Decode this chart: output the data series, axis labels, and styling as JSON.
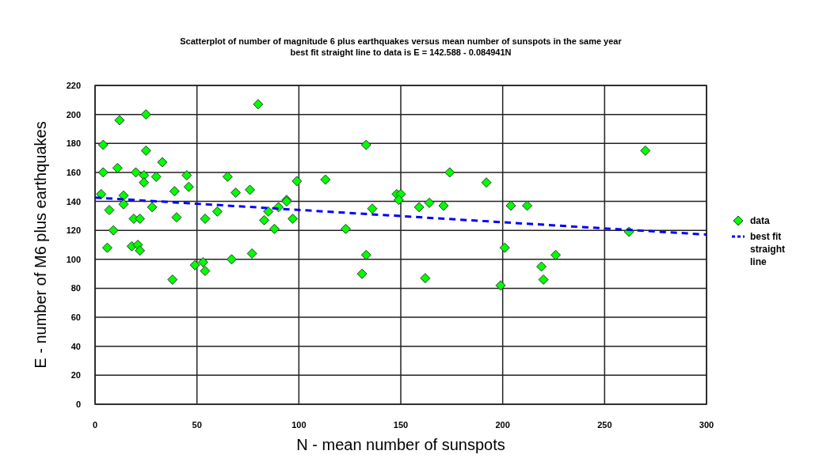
{
  "chart_data": {
    "type": "scatter",
    "title": "Scatterplot of number of magnitude 6 plus earthquakes versus mean number of sunspots in the same year",
    "subtitle": "best fit straight line to data is E = 142.588 - 0.084941N",
    "xlabel": "N - mean number of sunspots",
    "ylabel": "E - number of M6 plus earthquakes",
    "xlim": [
      0,
      300
    ],
    "xticks": [
      0,
      50,
      100,
      150,
      200,
      250,
      300
    ],
    "ylim": [
      0,
      220
    ],
    "yticks": [
      0,
      20,
      40,
      60,
      80,
      100,
      120,
      140,
      160,
      180,
      200,
      220
    ],
    "grid": true,
    "legend": "right",
    "series": [
      {
        "name": "data",
        "color": "#00ff00",
        "marker": "diamond",
        "x": [
          3,
          4,
          4,
          6,
          7,
          9,
          11,
          12,
          14,
          14,
          18,
          19,
          20,
          21,
          22,
          22,
          24,
          25,
          25,
          24,
          28,
          30,
          33,
          38,
          39,
          40,
          45,
          46,
          49,
          53,
          54,
          54,
          60,
          65,
          67,
          69,
          76,
          77,
          80,
          83,
          85,
          88,
          90,
          94,
          94,
          97,
          99,
          113,
          123,
          131,
          133,
          133,
          136,
          148,
          150,
          149,
          159,
          162,
          164,
          171,
          174,
          192,
          199,
          201,
          204,
          212,
          219,
          220,
          226,
          262,
          270
        ],
        "values": [
          145,
          179,
          160,
          108,
          134,
          120,
          163,
          196,
          144,
          138,
          109,
          128,
          160,
          110,
          106,
          128,
          158,
          175,
          200,
          153,
          136,
          157,
          167,
          86,
          147,
          129,
          158,
          150,
          96,
          98,
          92,
          128,
          133,
          157,
          100,
          146,
          148,
          104,
          207,
          127,
          133,
          121,
          136,
          141,
          140,
          128,
          154,
          155,
          121,
          90,
          103,
          179,
          135,
          145,
          145,
          141,
          136,
          87,
          139,
          137,
          160,
          153,
          82,
          108,
          137,
          137,
          95,
          86,
          103,
          119,
          175
        ]
      },
      {
        "name": "best fit straight line",
        "type": "line",
        "color": "#0000ff",
        "line_style": "dashed",
        "marker": "none",
        "x": [
          0,
          300
        ],
        "values": [
          142.6,
          117.1
        ]
      }
    ]
  }
}
